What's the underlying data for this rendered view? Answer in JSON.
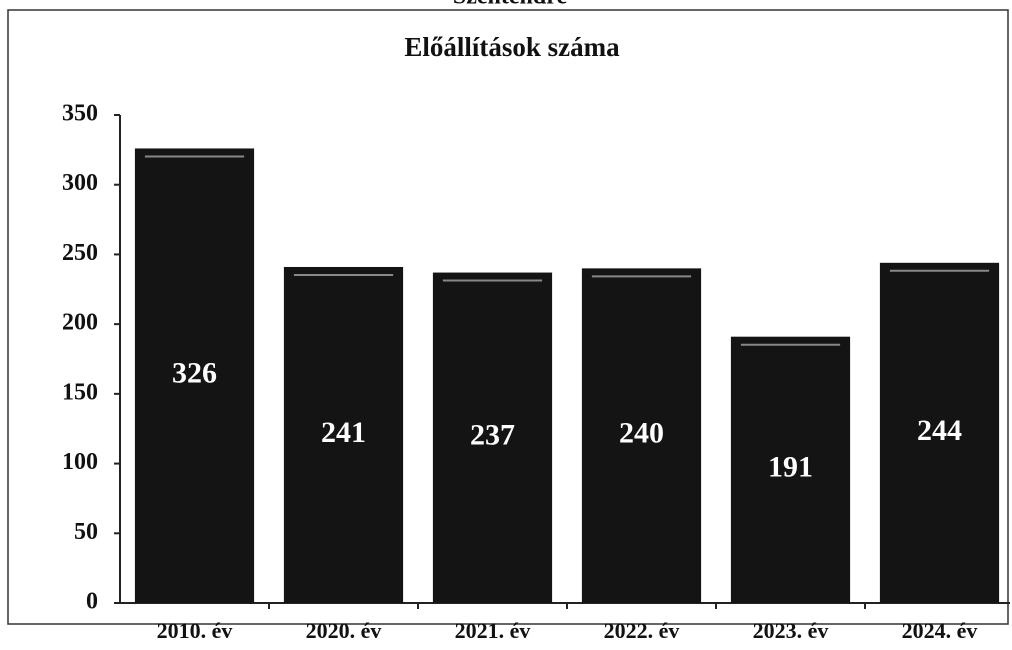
{
  "chart_data": {
    "type": "bar",
    "title": "Előállítások száma",
    "subtitle": "Szentendre",
    "categories": [
      "2010. év",
      "2020. év",
      "2021. év",
      "2022. év",
      "2023. év",
      "2024. év"
    ],
    "values": [
      326,
      241,
      237,
      240,
      191,
      244
    ],
    "color": "#141414",
    "ylim": [
      0,
      350
    ],
    "yticks": [
      0,
      50,
      100,
      150,
      200,
      250,
      300,
      350
    ],
    "grid": false
  }
}
